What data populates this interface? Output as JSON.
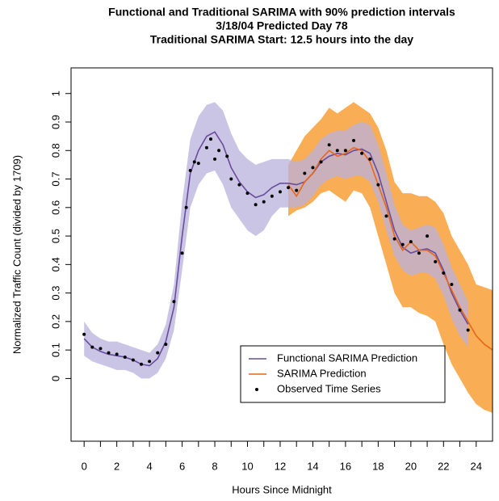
{
  "chart_data": {
    "type": "line",
    "title": [
      "Functional and Traditional SARIMA with 90% prediction intervals",
      "3/18/04 Predicted Day 78",
      "Traditional SARIMA Start: 12.5 hours into the day"
    ],
    "xlabel": "Hours Since Midnight",
    "ylabel": "Normalized Traffic Count (divided by 1709)",
    "xlim": [
      -0.8,
      25
    ],
    "ylim": [
      -0.22,
      1.09
    ],
    "xticks": [
      0,
      2,
      4,
      6,
      8,
      10,
      12,
      14,
      16,
      18,
      20,
      22,
      24
    ],
    "xminor": [
      1,
      3,
      5,
      7,
      9,
      11,
      13,
      15,
      17,
      19,
      21,
      23
    ],
    "yticks": [
      0,
      0.1,
      0.2,
      0.3,
      0.4,
      0.5,
      0.6,
      0.7,
      0.8,
      0.9,
      1
    ],
    "legend": "bottom-right",
    "series": [
      {
        "name": "Functional SARIMA Prediction",
        "kind": "line",
        "color": "#6a4c9c",
        "band_color": "#b8b2dc",
        "x": [
          0,
          0.5,
          1,
          1.5,
          2,
          2.5,
          3,
          3.5,
          4,
          4.5,
          5,
          5.5,
          6,
          6.5,
          7,
          7.5,
          8,
          8.5,
          9,
          9.5,
          10,
          10.5,
          11,
          11.5,
          12,
          12.5,
          13,
          13.5,
          14,
          14.5,
          15,
          15.5,
          16,
          16.5,
          17,
          17.5,
          18,
          18.5,
          19,
          19.5,
          20,
          20.5,
          21,
          21.5,
          22,
          22.5,
          23,
          23.5
        ],
        "values": [
          0.14,
          0.11,
          0.095,
          0.085,
          0.08,
          0.075,
          0.065,
          0.05,
          0.045,
          0.07,
          0.13,
          0.25,
          0.5,
          0.72,
          0.8,
          0.85,
          0.865,
          0.82,
          0.74,
          0.69,
          0.655,
          0.635,
          0.645,
          0.67,
          0.685,
          0.685,
          0.68,
          0.69,
          0.72,
          0.76,
          0.78,
          0.79,
          0.785,
          0.8,
          0.805,
          0.79,
          0.72,
          0.62,
          0.52,
          0.46,
          0.44,
          0.45,
          0.455,
          0.44,
          0.38,
          0.3,
          0.24,
          0.19
        ],
        "lower": [
          0.08,
          0.06,
          0.05,
          0.04,
          0.03,
          0.03,
          0.02,
          0.0,
          0.0,
          0.02,
          0.07,
          0.17,
          0.38,
          0.6,
          0.68,
          0.72,
          0.73,
          0.68,
          0.6,
          0.56,
          0.52,
          0.5,
          0.52,
          0.57,
          0.6,
          0.6,
          0.6,
          0.61,
          0.64,
          0.68,
          0.7,
          0.71,
          0.7,
          0.71,
          0.71,
          0.69,
          0.62,
          0.52,
          0.43,
          0.38,
          0.36,
          0.37,
          0.37,
          0.35,
          0.29,
          0.21,
          0.15,
          0.11
        ],
        "upper": [
          0.2,
          0.16,
          0.14,
          0.13,
          0.13,
          0.12,
          0.11,
          0.1,
          0.09,
          0.12,
          0.19,
          0.33,
          0.62,
          0.84,
          0.92,
          0.96,
          0.97,
          0.94,
          0.86,
          0.8,
          0.77,
          0.75,
          0.76,
          0.77,
          0.77,
          0.77,
          0.76,
          0.77,
          0.8,
          0.84,
          0.86,
          0.87,
          0.87,
          0.89,
          0.9,
          0.89,
          0.82,
          0.72,
          0.61,
          0.54,
          0.52,
          0.53,
          0.54,
          0.53,
          0.47,
          0.39,
          0.33,
          0.27
        ]
      },
      {
        "name": "SARIMA Prediction",
        "kind": "line",
        "color": "#e8661a",
        "band_color": "#f9ad55",
        "x": [
          12.5,
          13,
          13.5,
          14,
          14.5,
          15,
          15.5,
          16,
          16.5,
          17,
          17.5,
          18,
          18.5,
          19,
          19.5,
          20,
          20.5,
          21,
          21.5,
          22,
          22.5,
          23,
          23.5,
          24,
          24.5,
          25
        ],
        "values": [
          0.68,
          0.64,
          0.69,
          0.72,
          0.77,
          0.8,
          0.78,
          0.79,
          0.81,
          0.8,
          0.76,
          0.68,
          0.6,
          0.5,
          0.45,
          0.48,
          0.45,
          0.45,
          0.43,
          0.37,
          0.31,
          0.25,
          0.2,
          0.15,
          0.12,
          0.1
        ],
        "lower": [
          0.57,
          0.59,
          0.6,
          0.62,
          0.65,
          0.66,
          0.64,
          0.62,
          0.66,
          0.65,
          0.6,
          0.5,
          0.4,
          0.3,
          0.25,
          0.25,
          0.23,
          0.22,
          0.2,
          0.12,
          0.05,
          0.0,
          -0.05,
          -0.09,
          -0.11,
          -0.12
        ],
        "upper": [
          0.75,
          0.8,
          0.85,
          0.88,
          0.91,
          0.95,
          0.93,
          0.95,
          0.97,
          0.95,
          0.93,
          0.88,
          0.8,
          0.69,
          0.65,
          0.65,
          0.64,
          0.64,
          0.62,
          0.58,
          0.5,
          0.45,
          0.4,
          0.33,
          0.32,
          0.31
        ]
      },
      {
        "name": "Observed Time Series",
        "kind": "points",
        "color": "#000000",
        "x": [
          0,
          0.5,
          1,
          1.5,
          2,
          2.5,
          3,
          3.5,
          4,
          4.5,
          5,
          5.5,
          6,
          6.25,
          6.5,
          6.75,
          7,
          7.5,
          7.75,
          8,
          8.25,
          8.75,
          9,
          9.5,
          10,
          10.5,
          11,
          11.5,
          12,
          12.5,
          13,
          13.5,
          14,
          14.5,
          15,
          15.5,
          16,
          16.5,
          17,
          17.5,
          18,
          18.5,
          19,
          19.5,
          20,
          20.5,
          21,
          21.5,
          22,
          22.5,
          23,
          23.5
        ],
        "values": [
          0.155,
          0.11,
          0.105,
          0.09,
          0.085,
          0.075,
          0.065,
          0.05,
          0.06,
          0.09,
          0.12,
          0.27,
          0.44,
          0.6,
          0.73,
          0.76,
          0.755,
          0.81,
          0.84,
          0.77,
          0.8,
          0.78,
          0.7,
          0.68,
          0.65,
          0.61,
          0.62,
          0.64,
          0.655,
          0.67,
          0.66,
          0.72,
          0.74,
          0.76,
          0.82,
          0.8,
          0.8,
          0.835,
          0.79,
          0.77,
          0.68,
          0.57,
          0.49,
          0.47,
          0.48,
          0.44,
          0.5,
          0.41,
          0.37,
          0.33,
          0.24,
          0.17
        ]
      }
    ]
  }
}
